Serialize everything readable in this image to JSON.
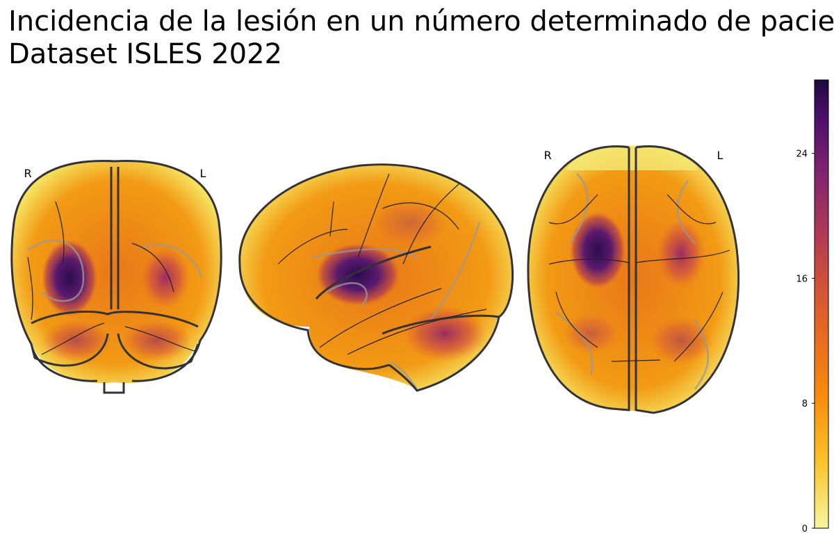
{
  "figure": {
    "title_lines": [
      "Incidencia de la lesión en un número determinado de pacientes",
      "Dataset ISLES 2022"
    ],
    "views": [
      {
        "left": "R",
        "right": "L"
      },
      {
        "left": "R",
        "right": "L"
      }
    ],
    "colorbar": {
      "lim": [
        0,
        28.7
      ],
      "ticks": [
        0,
        8,
        16,
        24
      ]
    }
  }
}
